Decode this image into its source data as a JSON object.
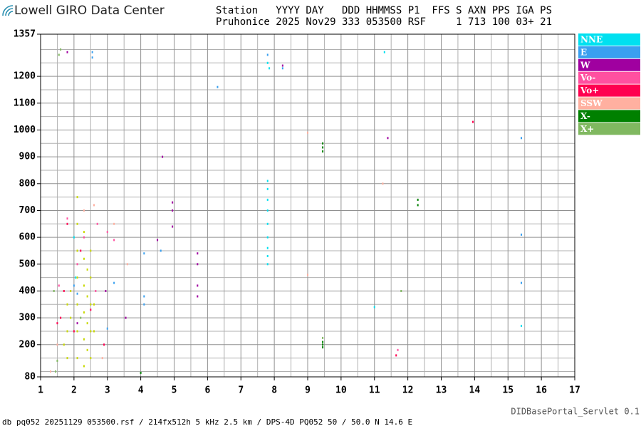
{
  "brand": "Lowell GIRO Data Center",
  "header_lines": [
    "Station   YYYY DAY   DDD HHMMSS P1  FFS S AXN PPS IGA PS",
    "Pruhonice 2025 Nov29 333 053500 RSF     1 713 100 03+ 21"
  ],
  "footer_left": "db pq052 20251129 053500.rsf / 214fx512h 5 kHz 2.5 km / DPS-4D PQ052 50 / 50.0 N 14.6 E",
  "footer_right": "DIDBasePortal_Servlet 0.1",
  "chart_data": {
    "type": "scatter",
    "xlim": [
      1,
      17
    ],
    "xticks": [
      1,
      2,
      3,
      4,
      5,
      6,
      7,
      8,
      9,
      10,
      11,
      12,
      13,
      14,
      15,
      16,
      17
    ],
    "ylim": [
      80,
      1357
    ],
    "yticks": [
      80,
      200,
      300,
      400,
      500,
      600,
      700,
      800,
      900,
      1000,
      1100,
      1200,
      1357
    ],
    "minor_xticks": [
      1.5,
      2.5,
      3.5,
      4.5,
      5.5,
      6.5,
      7.5,
      8.5,
      9.5,
      10.5,
      11.5,
      12.5,
      13.5,
      14.5,
      15.5,
      16.5
    ],
    "minor_yticks": [
      100,
      150,
      250,
      350,
      450,
      550,
      650,
      750,
      850,
      950,
      1050,
      1150,
      1250,
      1300
    ],
    "grid": true,
    "series": [
      {
        "name": "NNE",
        "color": "#00e0f0",
        "x": [
          7.8,
          7.8,
          7.8,
          7.8,
          7.8,
          7.8,
          7.8,
          7.8,
          7.8,
          7.8,
          7.85,
          2,
          2.05,
          15.4,
          11,
          11.3
        ],
        "y": [
          500,
          530,
          560,
          600,
          650,
          700,
          740,
          780,
          810,
          1250,
          1230,
          600,
          450,
          270,
          340,
          1290
        ]
      },
      {
        "name": "E",
        "color": "#3aa0f0",
        "x": [
          4.1,
          4.1,
          4.1,
          4.6,
          3.2,
          2.55,
          2.55,
          7.8,
          8.25,
          15.4,
          15.4,
          15.4,
          6.3,
          2,
          2.1,
          3
        ],
        "y": [
          350,
          380,
          540,
          550,
          430,
          1270,
          1290,
          1280,
          1230,
          970,
          430,
          610,
          1160,
          420,
          390,
          260
        ]
      },
      {
        "name": "W",
        "color": "#a000a0",
        "x": [
          5.7,
          5.7,
          5.7,
          5.7,
          4.95,
          4.95,
          4.95,
          2.95,
          1.8,
          4.65,
          8.25,
          11.4,
          3.55,
          4.5,
          2.1
        ],
        "y": [
          380,
          420,
          500,
          540,
          640,
          700,
          730,
          400,
          1290,
          900,
          1240,
          970,
          300,
          590,
          280
        ]
      },
      {
        "name": "Vo-",
        "color": "#ff50a0",
        "x": [
          1.8,
          2.65,
          2.7,
          3.2,
          2.1,
          1.55,
          2.3,
          3,
          11.7
        ],
        "y": [
          670,
          400,
          650,
          590,
          500,
          420,
          600,
          620,
          180
        ]
      },
      {
        "name": "Vo+",
        "color": "#ff0050",
        "x": [
          1.6,
          1.5,
          2,
          13.95,
          2.2,
          1.8,
          2.9,
          11.65,
          2.5,
          1.7
        ],
        "y": [
          300,
          280,
          250,
          1030,
          550,
          650,
          200,
          160,
          330,
          400
        ]
      },
      {
        "name": "SSW",
        "color": "#ffb0a0",
        "x": [
          1.5,
          2.3,
          2.6,
          3.2,
          9,
          11.25,
          9,
          1.3,
          2.85,
          3.6
        ],
        "y": [
          200,
          700,
          720,
          650,
          990,
          800,
          460,
          100,
          150,
          500
        ]
      },
      {
        "name": "X-",
        "color": "#008000",
        "x": [
          9.45,
          9.45,
          9.45,
          9.45,
          9.45,
          9.45,
          12.3,
          12.3,
          4.0
        ],
        "y": [
          920,
          935,
          950,
          190,
          200,
          210,
          720,
          740,
          95
        ]
      },
      {
        "name": "X+",
        "color": "#80b860",
        "x": [
          1.55,
          1.6,
          1.4,
          1.5,
          2.2,
          11.8,
          9.45,
          1.45
        ],
        "y": [
          1280,
          1300,
          400,
          140,
          300,
          400,
          225,
          100
        ]
      },
      {
        "color": "#c8d800",
        "x": [
          2.1,
          2.1,
          2.1,
          2.1,
          2.1,
          2.1,
          2.1,
          2.3,
          2.3,
          2.3,
          2.3,
          2.3,
          2.3,
          2.4,
          2.4,
          2.4,
          2.4,
          2.5,
          2.5,
          2.5,
          2.5,
          2.5,
          1.8,
          1.8,
          1.8,
          1.7,
          1.9,
          1.9,
          2.6,
          2.6
        ],
        "y": [
          150,
          250,
          350,
          450,
          550,
          650,
          750,
          120,
          220,
          320,
          420,
          520,
          620,
          180,
          280,
          380,
          480,
          150,
          250,
          350,
          450,
          550,
          150,
          250,
          350,
          200,
          300,
          400,
          250,
          350
        ]
      }
    ]
  }
}
